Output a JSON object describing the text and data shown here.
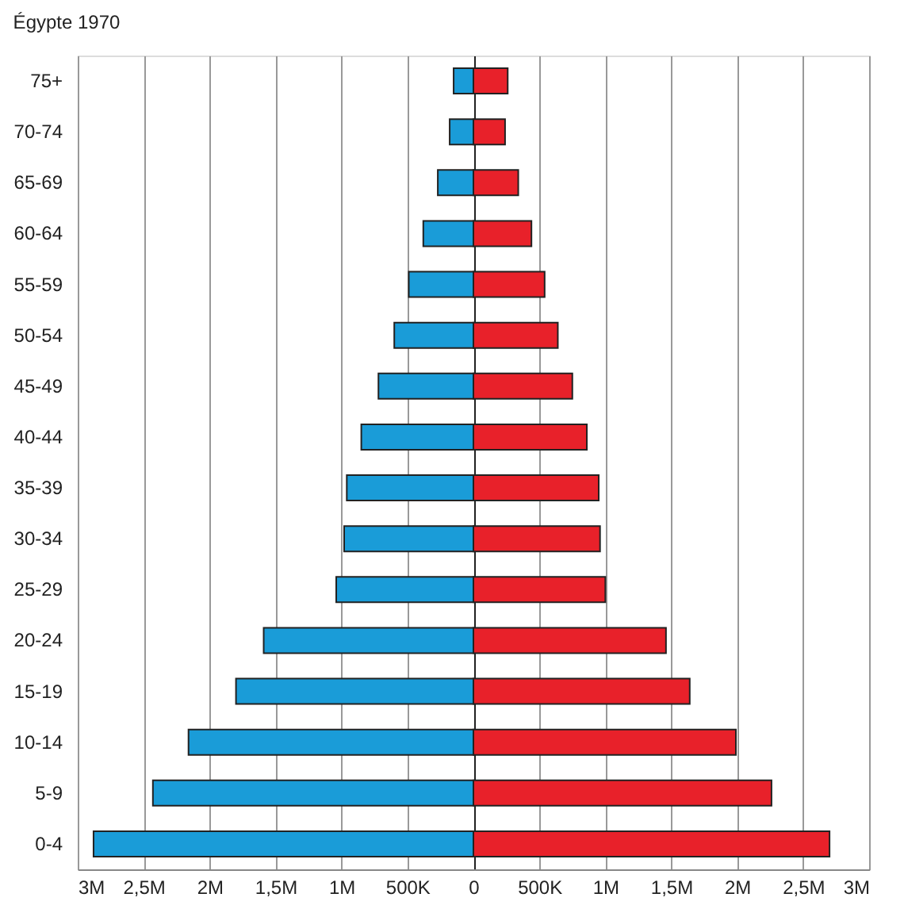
{
  "chart_data": {
    "type": "bar",
    "orientation": "horizontal",
    "title": "Égypte 1970",
    "categories": [
      "75+",
      "70-74",
      "65-69",
      "60-64",
      "55-59",
      "50-54",
      "45-49",
      "40-44",
      "35-39",
      "30-34",
      "25-29",
      "20-24",
      "15-19",
      "10-14",
      "5-9",
      "0-4"
    ],
    "series": [
      {
        "color": "#1a9cd8",
        "values": [
          -150000,
          -180000,
          -270000,
          -380000,
          -490000,
          -600000,
          -720000,
          -850000,
          -960000,
          -980000,
          -1040000,
          -1590000,
          -1800000,
          -2160000,
          -2430000,
          -2880000
        ]
      },
      {
        "color": "#e8212a",
        "values": [
          260000,
          240000,
          340000,
          440000,
          540000,
          640000,
          750000,
          860000,
          950000,
          960000,
          1000000,
          1460000,
          1640000,
          1990000,
          2260000,
          2700000
        ]
      }
    ],
    "xlim": [
      -3000000,
      3000000
    ],
    "xticks": [
      {
        "value": -3000000,
        "label": "3M"
      },
      {
        "value": -2500000,
        "label": "2,5M"
      },
      {
        "value": -2000000,
        "label": "2M"
      },
      {
        "value": -1500000,
        "label": "1,5M"
      },
      {
        "value": -1000000,
        "label": "1M"
      },
      {
        "value": -500000,
        "label": "500K"
      },
      0,
      {
        "value": 500000,
        "label": "500K"
      },
      {
        "value": 1000000,
        "label": "1M"
      },
      {
        "value": 1500000,
        "label": "1,5M"
      },
      {
        "value": 2000000,
        "label": "2M"
      },
      {
        "value": 2500000,
        "label": "2,5M"
      },
      {
        "value": 3000000,
        "label": "3M"
      }
    ],
    "stacked": true,
    "grid": "x"
  }
}
